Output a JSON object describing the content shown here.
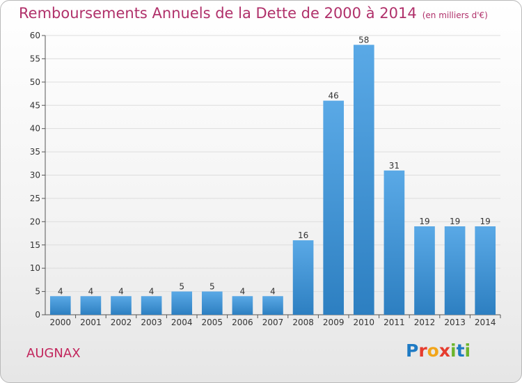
{
  "title": "Remboursements Annuels de la Dette de 2000 à 2014",
  "subtitle": "(en milliers d'€)",
  "town": "AUGNAX",
  "logo": {
    "letters": [
      "P",
      "r",
      "o",
      "x",
      "i",
      "t",
      "i"
    ],
    "colors": [
      "#1f7bc4",
      "#e63c2e",
      "#f2a51a",
      "#e63c2e",
      "#6cb52d",
      "#1f7bc4",
      "#6cb52d"
    ]
  },
  "colors": {
    "bar_light": "#5aa9e6",
    "bar_dark": "#2d7fc1",
    "title": "#b0306a"
  },
  "chart_data": {
    "type": "bar",
    "title": "Remboursements Annuels de la Dette de 2000 à 2014",
    "subtitle": "(en milliers d'€)",
    "categories": [
      "2000",
      "2001",
      "2002",
      "2003",
      "2004",
      "2005",
      "2006",
      "2007",
      "2008",
      "2009",
      "2010",
      "2011",
      "2012",
      "2013",
      "2014"
    ],
    "values": [
      4,
      4,
      4,
      4,
      5,
      5,
      4,
      4,
      16,
      46,
      58,
      31,
      19,
      19,
      19
    ],
    "ylim": [
      0,
      60
    ],
    "yticks": [
      0,
      5,
      10,
      15,
      20,
      25,
      30,
      35,
      40,
      45,
      50,
      55,
      60
    ],
    "grid": "horizontal",
    "xlabel": "",
    "ylabel": ""
  }
}
